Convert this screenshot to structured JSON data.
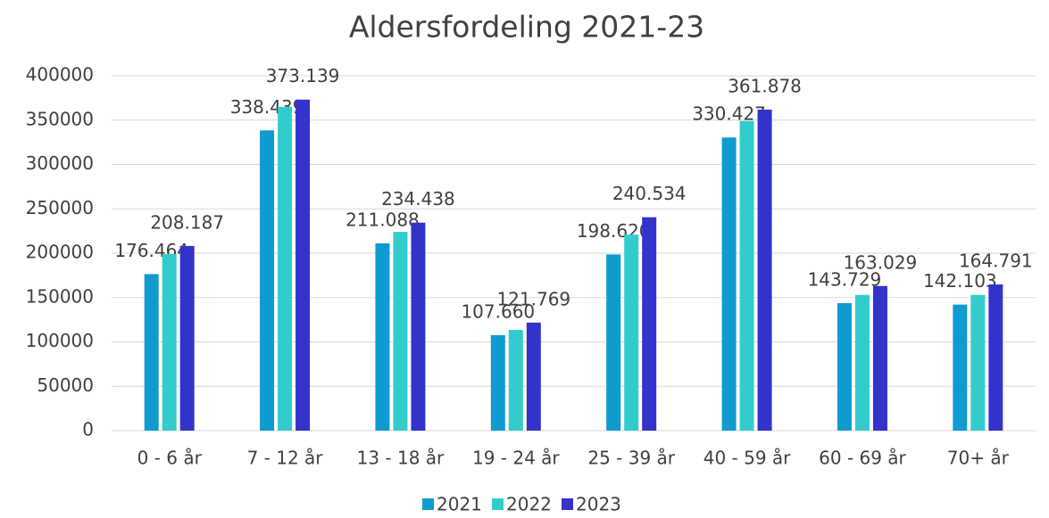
{
  "chart_data": {
    "type": "bar",
    "title": "Aldersfordeling 2021-23",
    "categories": [
      "0 - 6 år",
      "7 - 12 år",
      "13 - 18 år",
      "19 - 24 år",
      "25 - 39 år",
      "40 - 59 år",
      "60 - 69 år",
      "70+ år"
    ],
    "series": [
      {
        "name": "2021",
        "color": "#0f9bcf",
        "values": [
          176464,
          338439,
          211088,
          107660,
          198620,
          330427,
          143729,
          142103
        ],
        "value_labels": [
          "176.464",
          "338.439",
          "211.088",
          "107.660",
          "198.620",
          "330.427",
          "143.729",
          "142.103"
        ]
      },
      {
        "name": "2022",
        "color": "#33cccc",
        "values": [
          199000,
          365000,
          224000,
          113500,
          221000,
          349000,
          153000,
          153000
        ]
      },
      {
        "name": "2023",
        "color": "#3333cc",
        "values": [
          208187,
          373139,
          234438,
          121769,
          240534,
          361878,
          163029,
          164791
        ],
        "value_labels": [
          "208.187",
          "373.139",
          "234.438",
          "121.769",
          "240.534",
          "361.878",
          "163.029",
          "164.791"
        ]
      }
    ],
    "ylim": [
      0,
      400000
    ],
    "yticks": [
      0,
      50000,
      100000,
      150000,
      200000,
      250000,
      300000,
      350000,
      400000
    ],
    "grid": true,
    "legend": "bottom"
  }
}
